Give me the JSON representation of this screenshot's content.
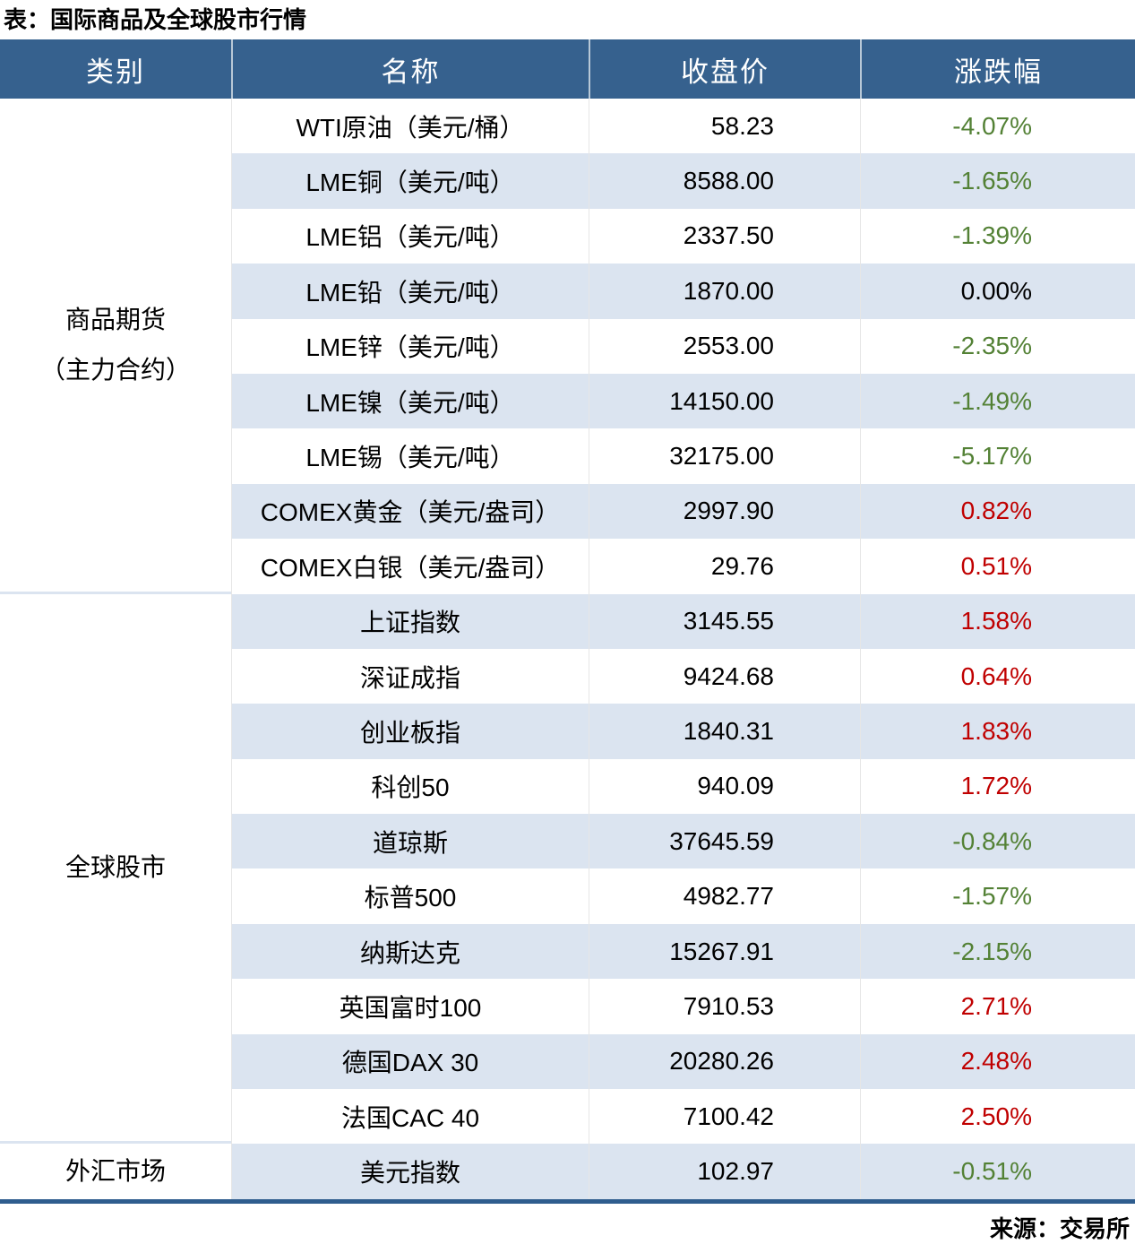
{
  "chart_data": {
    "type": "table",
    "title": "表：国际商品及全球股市行情",
    "source_note": "来源：交易所",
    "columns": [
      "类别",
      "名称",
      "收盘价",
      "涨跌幅"
    ],
    "categories": [
      {
        "label_lines": [
          "商品期货",
          "（主力合约）"
        ],
        "row_span": 9
      },
      {
        "label_lines": [
          "全球股市"
        ],
        "row_span": 10
      },
      {
        "label_lines": [
          "外汇市场"
        ],
        "row_span": 1
      }
    ],
    "rows": [
      {
        "name": "WTI原油（美元/桶）",
        "close": "58.23",
        "change": "-4.07%",
        "direction": "down"
      },
      {
        "name": "LME铜（美元/吨）",
        "close": "8588.00",
        "change": "-1.65%",
        "direction": "down"
      },
      {
        "name": "LME铝（美元/吨）",
        "close": "2337.50",
        "change": "-1.39%",
        "direction": "down"
      },
      {
        "name": "LME铅（美元/吨）",
        "close": "1870.00",
        "change": "0.00%",
        "direction": "flat"
      },
      {
        "name": "LME锌（美元/吨）",
        "close": "2553.00",
        "change": "-2.35%",
        "direction": "down"
      },
      {
        "name": "LME镍（美元/吨）",
        "close": "14150.00",
        "change": "-1.49%",
        "direction": "down"
      },
      {
        "name": "LME锡（美元/吨）",
        "close": "32175.00",
        "change": "-5.17%",
        "direction": "down"
      },
      {
        "name": "COMEX黄金（美元/盎司）",
        "close": "2997.90",
        "change": "0.82%",
        "direction": "up"
      },
      {
        "name": "COMEX白银（美元/盎司）",
        "close": "29.76",
        "change": "0.51%",
        "direction": "up"
      },
      {
        "name": "上证指数",
        "close": "3145.55",
        "change": "1.58%",
        "direction": "up"
      },
      {
        "name": "深证成指",
        "close": "9424.68",
        "change": "0.64%",
        "direction": "up"
      },
      {
        "name": "创业板指",
        "close": "1840.31",
        "change": "1.83%",
        "direction": "up"
      },
      {
        "name": "科创50",
        "close": "940.09",
        "change": "1.72%",
        "direction": "up"
      },
      {
        "name": "道琼斯",
        "close": "37645.59",
        "change": "-0.84%",
        "direction": "down"
      },
      {
        "name": "标普500",
        "close": "4982.77",
        "change": "-1.57%",
        "direction": "down"
      },
      {
        "name": "纳斯达克",
        "close": "15267.91",
        "change": "-2.15%",
        "direction": "down"
      },
      {
        "name": "英国富时100",
        "close": "7910.53",
        "change": "2.71%",
        "direction": "up"
      },
      {
        "name": "德国DAX 30",
        "close": "20280.26",
        "change": "2.48%",
        "direction": "up"
      },
      {
        "name": "法国CAC 40",
        "close": "7100.42",
        "change": "2.50%",
        "direction": "up"
      },
      {
        "name": "美元指数",
        "close": "102.97",
        "change": "-0.51%",
        "direction": "down"
      }
    ]
  },
  "colors": {
    "header_bg": "#36618E",
    "stripe_bg": "#DBE4F0",
    "bottom_border": "#2F5D8E",
    "up_red": "#C00000",
    "down_green": "#538135",
    "neutral": "#000000"
  }
}
